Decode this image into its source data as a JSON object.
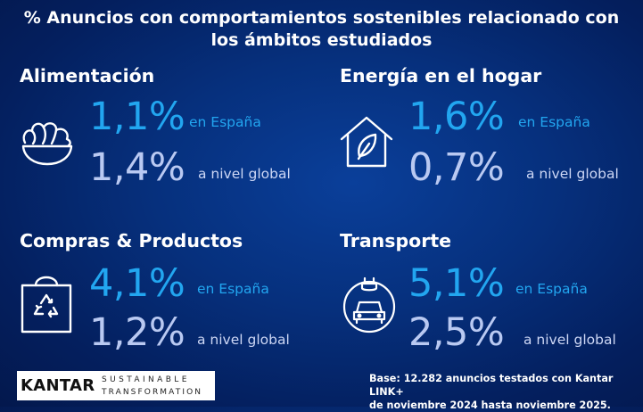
{
  "title": {
    "line1": "% Anuncios con comportamientos sostenibles relacionado con",
    "line2": "los ámbitos estudiados"
  },
  "categories": [
    {
      "name": "Alimentación",
      "spain_value": "1,1%",
      "spain_label": "en España",
      "global_value": "1,4%",
      "global_label": "a nivel global",
      "icon": "salad-bowl-icon"
    },
    {
      "name": "Energía en el hogar",
      "spain_value": "1,6%",
      "spain_label": "en España",
      "global_value": "0,7%",
      "global_label": "a nivel global",
      "icon": "house-leaf-icon"
    },
    {
      "name": "Compras & Productos",
      "spain_value": "4,1%",
      "spain_label": "en España",
      "global_value": "1,2%",
      "global_label": "a nivel global",
      "icon": "recycling-bag-icon"
    },
    {
      "name": "Transporte",
      "spain_value": "5,1%",
      "spain_label": "en España",
      "global_value": "2,5%",
      "global_label": "a nivel global",
      "icon": "electric-car-icon"
    }
  ],
  "logo": {
    "brand": "KANTAR",
    "line1": "SUSTAINABLE",
    "line2": "TRANSFORMATION"
  },
  "footnote": {
    "line1": "Base: 12.282 anuncios testados con Kantar LINK+",
    "line2": "de noviembre 2024 hasta noviembre 2025."
  },
  "colors": {
    "background": "#06307d",
    "spain": "#22a6f0",
    "global": "#b9c9f2"
  }
}
